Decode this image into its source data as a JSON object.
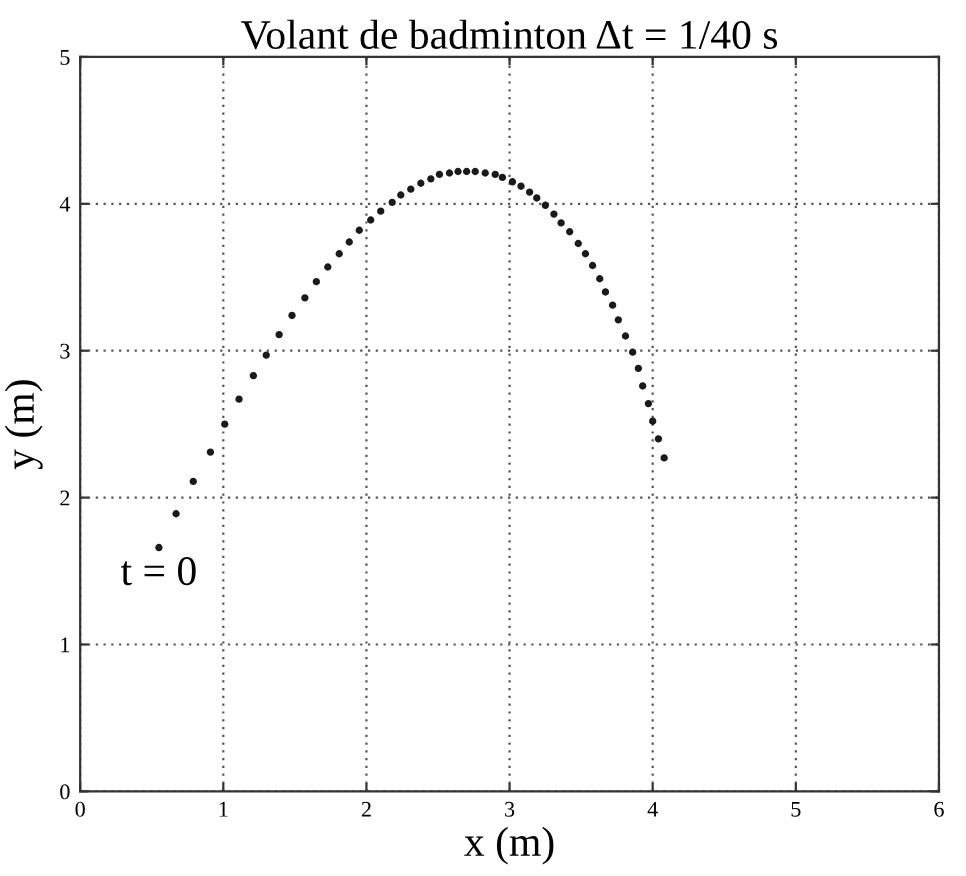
{
  "chart_data": {
    "type": "scatter",
    "title": "Volant de badminton Δt = 1/40 s",
    "xlabel": "x (m)",
    "ylabel": "y (m)",
    "x": [
      0.55,
      0.67,
      0.79,
      0.91,
      1.01,
      1.11,
      1.21,
      1.3,
      1.39,
      1.48,
      1.57,
      1.65,
      1.73,
      1.81,
      1.88,
      1.95,
      2.03,
      2.1,
      2.18,
      2.24,
      2.31,
      2.38,
      2.45,
      2.51,
      2.58,
      2.64,
      2.7,
      2.76,
      2.83,
      2.9,
      2.95,
      3.02,
      3.08,
      3.14,
      3.19,
      3.25,
      3.31,
      3.36,
      3.42,
      3.48,
      3.53,
      3.58,
      3.63,
      3.67,
      3.72,
      3.76,
      3.81,
      3.86,
      3.9,
      3.93,
      3.97,
      4.0,
      4.04,
      4.08
    ],
    "series": [
      {
        "color": "#1a1a1a",
        "values": [
          1.66,
          1.89,
          2.11,
          2.31,
          2.5,
          2.67,
          2.83,
          2.97,
          3.11,
          3.24,
          3.36,
          3.47,
          3.57,
          3.66,
          3.74,
          3.82,
          3.89,
          3.95,
          4.01,
          4.06,
          4.1,
          4.14,
          4.17,
          4.2,
          4.21,
          4.22,
          4.22,
          4.22,
          4.21,
          4.2,
          4.18,
          4.15,
          4.12,
          4.08,
          4.04,
          3.99,
          3.93,
          3.87,
          3.81,
          3.73,
          3.66,
          3.58,
          3.49,
          3.4,
          3.31,
          3.21,
          3.1,
          2.99,
          2.88,
          2.76,
          2.64,
          2.52,
          2.4,
          2.27
        ]
      }
    ],
    "annotations": [
      {
        "text": "t = 0",
        "x": 0.55,
        "y": 1.66
      }
    ],
    "xlim": [
      0,
      6
    ],
    "ylim": [
      0,
      5
    ],
    "xticks": [
      0,
      1,
      2,
      3,
      4,
      5,
      6
    ],
    "yticks": [
      0,
      1,
      2,
      3,
      4,
      5
    ],
    "grid": true,
    "marker": "circle"
  }
}
